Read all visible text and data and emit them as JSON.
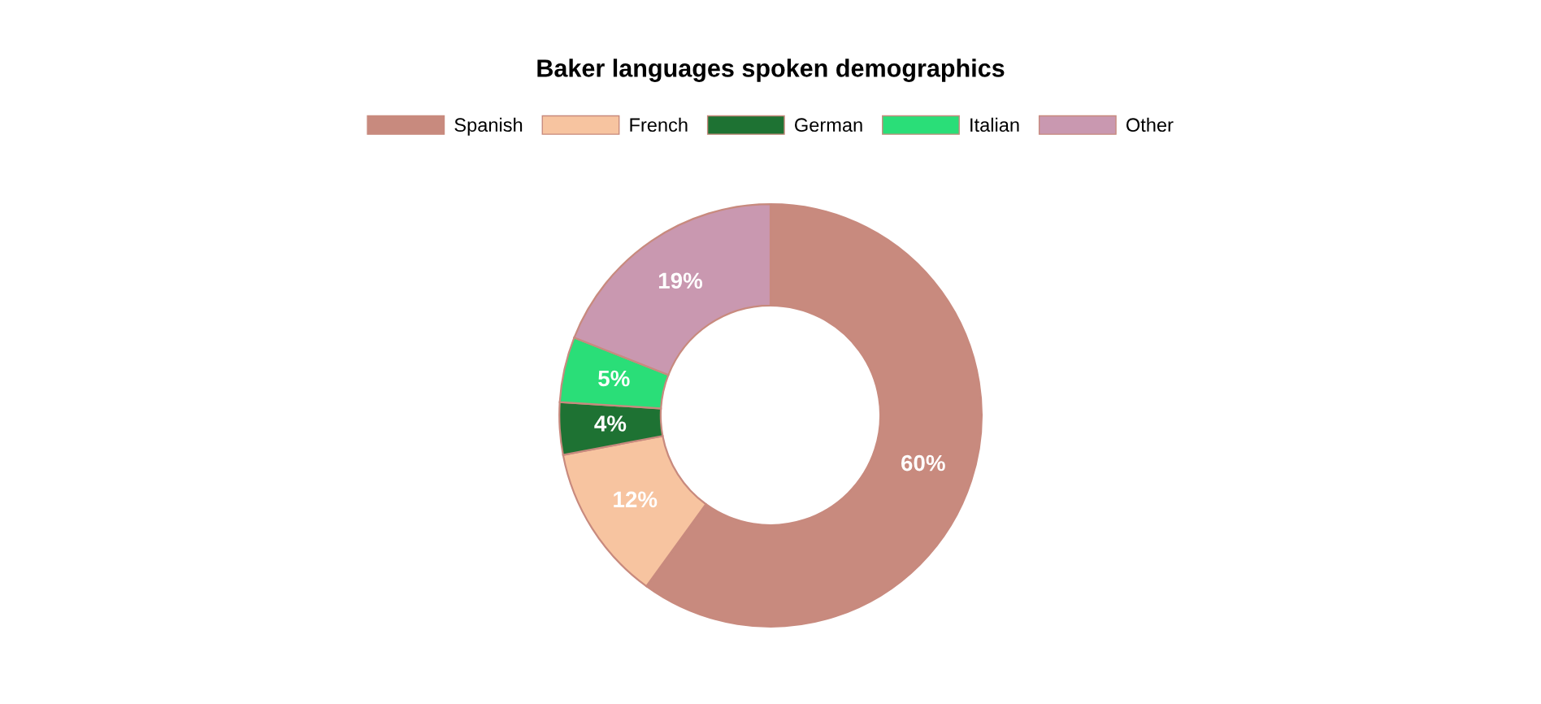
{
  "chart_data": {
    "type": "donut",
    "title": "Baker languages spoken demographics",
    "categories": [
      "Spanish",
      "French",
      "German",
      "Italian",
      "Other"
    ],
    "values": [
      60,
      12,
      4,
      5,
      19
    ],
    "colors": [
      "#c88a7e",
      "#f7c4a0",
      "#1e7233",
      "#2ade78",
      "#c998b0"
    ],
    "value_labels": [
      "60%",
      "12%",
      "4%",
      "5%",
      "19%"
    ],
    "legend": "top"
  }
}
